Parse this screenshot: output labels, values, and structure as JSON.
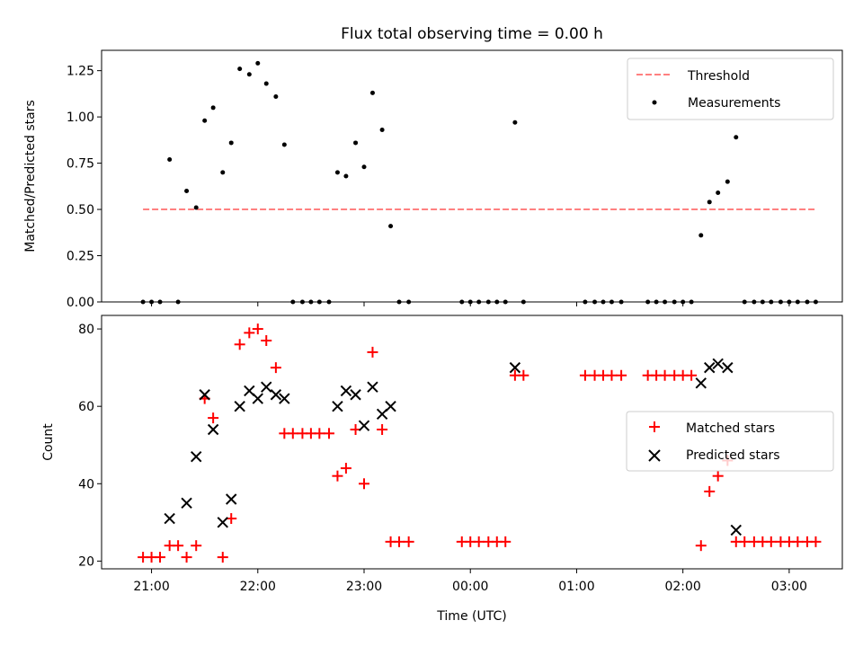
{
  "chart_data": [
    {
      "type": "scatter",
      "title": "Flux total observing time = 0.00 h",
      "xlabel": "",
      "ylabel": "Matched/Predicted stars",
      "ylim": [
        0,
        1.36
      ],
      "yticks": [
        0.0,
        0.25,
        0.5,
        0.75,
        1.0,
        1.25
      ],
      "ytick_labels": [
        "0.00",
        "0.25",
        "0.50",
        "0.75",
        "1.00",
        "1.25"
      ],
      "xlim_hours": [
        20.53,
        27.5
      ],
      "xticks_hours": [
        21,
        22,
        23,
        24,
        25,
        26,
        27
      ],
      "legend_position": "upper right",
      "threshold": {
        "name": "Threshold",
        "value": 0.5,
        "x_start_hours": 20.92,
        "x_end_hours": 27.25,
        "color": "#ff8080"
      },
      "series": [
        {
          "name": "Measurements",
          "color": "#000000",
          "x_hours": [
            20.92,
            21.0,
            21.08,
            21.17,
            21.25,
            21.33,
            21.42,
            21.5,
            21.58,
            21.67,
            21.75,
            21.83,
            21.92,
            22.0,
            22.08,
            22.17,
            22.25,
            22.33,
            22.42,
            22.5,
            22.58,
            22.67,
            22.75,
            22.83,
            22.92,
            23.0,
            23.08,
            23.17,
            23.25,
            23.33,
            23.42,
            23.92,
            24.0,
            24.08,
            24.17,
            24.25,
            24.33,
            24.42,
            24.5,
            25.08,
            25.17,
            25.25,
            25.33,
            25.42,
            25.67,
            25.75,
            25.83,
            25.92,
            26.0,
            26.08,
            26.17,
            26.25,
            26.33,
            26.42,
            26.5,
            26.58,
            26.67,
            26.75,
            26.83,
            26.92,
            27.0,
            27.08,
            27.17,
            27.25
          ],
          "y": [
            0,
            0,
            0,
            0.77,
            0,
            0.6,
            0.51,
            0.98,
            1.05,
            0.7,
            0.86,
            1.26,
            1.23,
            1.29,
            1.18,
            1.11,
            0.85,
            0,
            0,
            0,
            0,
            0,
            0.7,
            0.68,
            0.86,
            0.73,
            1.13,
            0.93,
            0.41,
            0,
            0,
            0,
            0,
            0,
            0,
            0,
            0,
            0.97,
            0,
            0,
            0,
            0,
            0,
            0,
            0,
            0,
            0,
            0,
            0,
            0,
            0.36,
            0.54,
            0.59,
            0.65,
            0.89,
            0,
            0,
            0,
            0,
            0,
            0,
            0,
            0,
            0
          ]
        }
      ]
    },
    {
      "type": "scatter",
      "title": "",
      "xlabel": "Time (UTC)",
      "ylabel": "Count",
      "ylim": [
        18,
        83.5
      ],
      "yticks": [
        20,
        40,
        60,
        80
      ],
      "ytick_labels": [
        "20",
        "40",
        "60",
        "80"
      ],
      "xlim_hours": [
        20.53,
        27.5
      ],
      "xticks_hours": [
        21,
        22,
        23,
        24,
        25,
        26,
        27
      ],
      "xtick_labels": [
        "21:00",
        "22:00",
        "23:00",
        "00:00",
        "01:00",
        "02:00",
        "03:00"
      ],
      "legend_position": "center right",
      "series": [
        {
          "name": "Matched stars",
          "marker": "+",
          "color": "#ff0000",
          "x_hours": [
            20.92,
            21.0,
            21.08,
            21.17,
            21.25,
            21.33,
            21.42,
            21.5,
            21.58,
            21.67,
            21.75,
            21.83,
            21.92,
            22.0,
            22.08,
            22.17,
            22.25,
            22.33,
            22.42,
            22.5,
            22.58,
            22.67,
            22.75,
            22.83,
            22.92,
            23.0,
            23.08,
            23.17,
            23.25,
            23.33,
            23.42,
            23.92,
            24.0,
            24.08,
            24.17,
            24.25,
            24.33,
            24.42,
            24.5,
            25.08,
            25.17,
            25.25,
            25.33,
            25.42,
            25.67,
            25.75,
            25.83,
            25.92,
            26.0,
            26.08,
            26.17,
            26.25,
            26.33,
            26.42,
            26.5,
            26.58,
            26.67,
            26.75,
            26.83,
            26.92,
            27.0,
            27.08,
            27.17,
            27.25
          ],
          "y": [
            21,
            21,
            21,
            24,
            24,
            21,
            24,
            62,
            57,
            21,
            31,
            76,
            79,
            80,
            77,
            70,
            53,
            53,
            53,
            53,
            53,
            53,
            42,
            44,
            54,
            40,
            74,
            54,
            25,
            25,
            25,
            25,
            25,
            25,
            25,
            25,
            25,
            68,
            68,
            68,
            68,
            68,
            68,
            68,
            68,
            68,
            68,
            68,
            68,
            68,
            24,
            38,
            42,
            46,
            25,
            25,
            25,
            25,
            25,
            25,
            25,
            25,
            25,
            25
          ]
        },
        {
          "name": "Predicted stars",
          "marker": "x",
          "color": "#000000",
          "x_hours": [
            21.17,
            21.33,
            21.42,
            21.5,
            21.58,
            21.67,
            21.75,
            21.83,
            21.92,
            22.0,
            22.08,
            22.17,
            22.25,
            22.75,
            22.83,
            22.92,
            23.0,
            23.08,
            23.17,
            23.25,
            24.42,
            26.17,
            26.25,
            26.33,
            26.42,
            26.5
          ],
          "y": [
            31,
            35,
            47,
            63,
            54,
            30,
            36,
            60,
            64,
            62,
            65,
            63,
            62,
            60,
            64,
            63,
            55,
            65,
            58,
            60,
            70,
            66,
            70,
            71,
            70,
            28
          ]
        }
      ]
    }
  ]
}
